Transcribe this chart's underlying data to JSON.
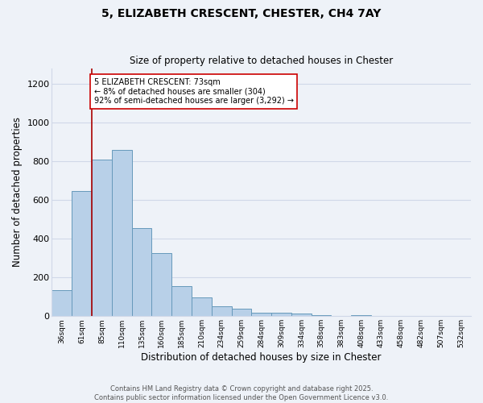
{
  "title": "5, ELIZABETH CRESCENT, CHESTER, CH4 7AY",
  "subtitle": "Size of property relative to detached houses in Chester",
  "xlabel": "Distribution of detached houses by size in Chester",
  "ylabel": "Number of detached properties",
  "bar_color": "#b8d0e8",
  "bar_edge_color": "#6699bb",
  "categories": [
    "36sqm",
    "61sqm",
    "85sqm",
    "110sqm",
    "135sqm",
    "160sqm",
    "185sqm",
    "210sqm",
    "234sqm",
    "259sqm",
    "284sqm",
    "309sqm",
    "334sqm",
    "358sqm",
    "383sqm",
    "408sqm",
    "433sqm",
    "458sqm",
    "482sqm",
    "507sqm",
    "532sqm"
  ],
  "values": [
    135,
    645,
    810,
    860,
    455,
    325,
    155,
    97,
    50,
    40,
    18,
    18,
    13,
    7,
    2,
    6,
    2,
    2,
    1,
    1,
    1
  ],
  "ylim": [
    0,
    1280
  ],
  "yticks": [
    0,
    200,
    400,
    600,
    800,
    1000,
    1200
  ],
  "redline_x": 1.5,
  "annotation_text": "5 ELIZABETH CRESCENT: 73sqm\n← 8% of detached houses are smaller (304)\n92% of semi-detached houses are larger (3,292) →",
  "annotation_box_color": "#ffffff",
  "annotation_box_edge": "#cc0000",
  "bg_color": "#eef2f8",
  "grid_color": "#d0d8e8",
  "footer": "Contains HM Land Registry data © Crown copyright and database right 2025.\nContains public sector information licensed under the Open Government Licence v3.0."
}
